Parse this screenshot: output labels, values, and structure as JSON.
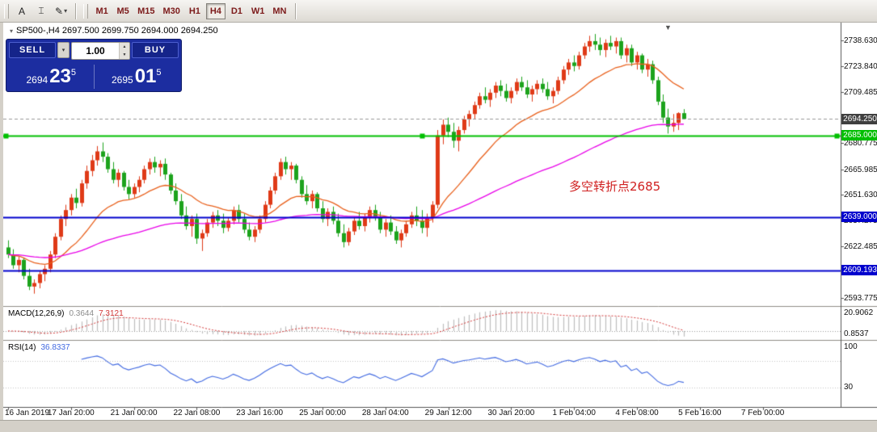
{
  "toolbar": {
    "text_tool_label": "A",
    "timeframes": [
      "M1",
      "M5",
      "M15",
      "M30",
      "H1",
      "H4",
      "D1",
      "W1",
      "MN"
    ],
    "active_timeframe": "H4"
  },
  "icons": {
    "cursor_tool": "⌶",
    "draw_tool": "✎",
    "dropdown_caret": "▾",
    "spin_up": "▲",
    "spin_down": "▼",
    "collapse_triangle": "▾",
    "shift_marker": "▼"
  },
  "symbol_info": "SP500-,H4  2697.500 2699.750 2694.000 2694.250",
  "trade_panel": {
    "sell_label": "SELL",
    "buy_label": "BUY",
    "volume": "1.00",
    "bid": {
      "small": "2694",
      "big": "23",
      "sup": "5"
    },
    "ask": {
      "small": "2695",
      "big": "01",
      "sup": "5"
    }
  },
  "annotation": {
    "text": "多空转折点2685"
  },
  "indicator_labels": {
    "macd_name": "MACD(12,26,9)",
    "macd_main": "0.3644",
    "macd_signal": "7.3121",
    "rsi_name": "RSI(14)",
    "rsi_value": "36.8337"
  },
  "chart_data": {
    "type": "candlestick",
    "title": "SP500-,H4",
    "symbol": "SP500-",
    "timeframe": "H4",
    "y_range": [
      2589.5,
      2747.5
    ],
    "y_ticks": [
      2738.63,
      2723.84,
      2709.485,
      2680.775,
      2665.985,
      2651.63,
      2637.275,
      2622.485,
      2593.775
    ],
    "current_price": 2694.25,
    "current_price_label": "2694.250",
    "hlines": [
      {
        "price": 2685.0,
        "label": "2685.000",
        "color": "#00bf00",
        "anchors": true
      },
      {
        "price": 2639.0,
        "label": "2639.000",
        "color": "#0000cd",
        "anchors": false
      },
      {
        "price": 2609.193,
        "label": "2609.193",
        "color": "#0000cd",
        "anchors": false
      }
    ],
    "time_labels": [
      "16 Jan 2019",
      "17 Jan 20:00",
      "21 Jan 00:00",
      "22 Jan 08:00",
      "23 Jan 16:00",
      "25 Jan 00:00",
      "28 Jan 04:00",
      "29 Jan 12:00",
      "30 Jan 20:00",
      "1 Feb 04:00",
      "4 Feb 08:00",
      "5 Feb 16:00",
      "7 Feb 00:00"
    ],
    "colors": {
      "up": "#df3a17",
      "down": "#1ca31c",
      "ma_fast": "#e8601c",
      "ma_slow": "#e800e8",
      "macd_hist": "#bdbdbd",
      "macd_signal": "#d23535",
      "rsi": "#4169e1",
      "level_line": "#c0c0c0",
      "current_line": "#9a9a9a",
      "price_box_bg": "#3f3f3f"
    },
    "indicators": {
      "macd": {
        "scale_top": "20.9062",
        "scale_bottom": "0.8537"
      },
      "rsi": {
        "scale_top": "100",
        "level_30": "30",
        "levels": [
          30,
          70
        ]
      }
    },
    "ohlc": [
      [
        2622,
        2626,
        2616,
        2618
      ],
      [
        2618,
        2621,
        2610,
        2612
      ],
      [
        2612,
        2617,
        2608,
        2615
      ],
      [
        2615,
        2616,
        2604,
        2606
      ],
      [
        2606,
        2610,
        2598,
        2600
      ],
      [
        2600,
        2604,
        2596,
        2602
      ],
      [
        2602,
        2609,
        2599,
        2607
      ],
      [
        2607,
        2612,
        2603,
        2610
      ],
      [
        2610,
        2620,
        2608,
        2618
      ],
      [
        2618,
        2630,
        2616,
        2628
      ],
      [
        2628,
        2640,
        2626,
        2638
      ],
      [
        2638,
        2646,
        2634,
        2643
      ],
      [
        2643,
        2652,
        2640,
        2650
      ],
      [
        2650,
        2655,
        2644,
        2647
      ],
      [
        2647,
        2660,
        2645,
        2658
      ],
      [
        2658,
        2668,
        2655,
        2665
      ],
      [
        2665,
        2674,
        2662,
        2671
      ],
      [
        2671,
        2679,
        2668,
        2676
      ],
      [
        2676,
        2681,
        2670,
        2673
      ],
      [
        2673,
        2675,
        2664,
        2666
      ],
      [
        2666,
        2670,
        2658,
        2660
      ],
      [
        2660,
        2666,
        2656,
        2664
      ],
      [
        2664,
        2665,
        2654,
        2656
      ],
      [
        2656,
        2660,
        2649,
        2652
      ],
      [
        2652,
        2658,
        2650,
        2656
      ],
      [
        2656,
        2662,
        2653,
        2660
      ],
      [
        2660,
        2668,
        2658,
        2666
      ],
      [
        2666,
        2672,
        2663,
        2670
      ],
      [
        2670,
        2673,
        2664,
        2667
      ],
      [
        2667,
        2671,
        2662,
        2669
      ],
      [
        2669,
        2672,
        2660,
        2663
      ],
      [
        2663,
        2664,
        2652,
        2654
      ],
      [
        2654,
        2658,
        2646,
        2648
      ],
      [
        2648,
        2652,
        2638,
        2640
      ],
      [
        2640,
        2645,
        2632,
        2634
      ],
      [
        2634,
        2640,
        2628,
        2638
      ],
      [
        2638,
        2641,
        2624,
        2627
      ],
      [
        2627,
        2632,
        2620,
        2630
      ],
      [
        2630,
        2638,
        2628,
        2636
      ],
      [
        2636,
        2642,
        2633,
        2640
      ],
      [
        2640,
        2643,
        2634,
        2637
      ],
      [
        2637,
        2641,
        2630,
        2633
      ],
      [
        2633,
        2639,
        2631,
        2637
      ],
      [
        2637,
        2645,
        2635,
        2643
      ],
      [
        2643,
        2646,
        2636,
        2638
      ],
      [
        2638,
        2641,
        2630,
        2632
      ],
      [
        2632,
        2636,
        2626,
        2628
      ],
      [
        2628,
        2634,
        2625,
        2632
      ],
      [
        2632,
        2640,
        2630,
        2638
      ],
      [
        2638,
        2648,
        2636,
        2646
      ],
      [
        2646,
        2656,
        2644,
        2654
      ],
      [
        2654,
        2664,
        2652,
        2662
      ],
      [
        2662,
        2672,
        2660,
        2670
      ],
      [
        2670,
        2673,
        2663,
        2666
      ],
      [
        2666,
        2670,
        2660,
        2668
      ],
      [
        2668,
        2669,
        2658,
        2660
      ],
      [
        2660,
        2662,
        2650,
        2652
      ],
      [
        2652,
        2657,
        2646,
        2648
      ],
      [
        2648,
        2654,
        2644,
        2652
      ],
      [
        2652,
        2653,
        2642,
        2644
      ],
      [
        2644,
        2648,
        2636,
        2638
      ],
      [
        2638,
        2644,
        2634,
        2642
      ],
      [
        2642,
        2645,
        2635,
        2637
      ],
      [
        2637,
        2641,
        2628,
        2630
      ],
      [
        2630,
        2635,
        2622,
        2625
      ],
      [
        2625,
        2633,
        2623,
        2631
      ],
      [
        2631,
        2639,
        2629,
        2637
      ],
      [
        2637,
        2642,
        2632,
        2634
      ],
      [
        2634,
        2641,
        2631,
        2639
      ],
      [
        2639,
        2645,
        2636,
        2643
      ],
      [
        2643,
        2646,
        2637,
        2639
      ],
      [
        2639,
        2642,
        2630,
        2632
      ],
      [
        2632,
        2638,
        2628,
        2636
      ],
      [
        2636,
        2640,
        2629,
        2631
      ],
      [
        2631,
        2634,
        2624,
        2626
      ],
      [
        2626,
        2632,
        2622,
        2630
      ],
      [
        2630,
        2637,
        2628,
        2635
      ],
      [
        2635,
        2642,
        2633,
        2640
      ],
      [
        2640,
        2645,
        2634,
        2637
      ],
      [
        2637,
        2643,
        2630,
        2633
      ],
      [
        2633,
        2641,
        2628,
        2639
      ],
      [
        2639,
        2648,
        2636,
        2646
      ],
      [
        2646,
        2688,
        2644,
        2685
      ],
      [
        2685,
        2694,
        2680,
        2691
      ],
      [
        2691,
        2695,
        2684,
        2687
      ],
      [
        2687,
        2692,
        2678,
        2682
      ],
      [
        2682,
        2690,
        2676,
        2688
      ],
      [
        2688,
        2696,
        2686,
        2694
      ],
      [
        2694,
        2699,
        2690,
        2697
      ],
      [
        2697,
        2704,
        2694,
        2702
      ],
      [
        2702,
        2709,
        2700,
        2707
      ],
      [
        2707,
        2712,
        2703,
        2705
      ],
      [
        2705,
        2711,
        2701,
        2709
      ],
      [
        2709,
        2715,
        2706,
        2713
      ],
      [
        2713,
        2716,
        2707,
        2710
      ],
      [
        2710,
        2714,
        2704,
        2706
      ],
      [
        2706,
        2712,
        2703,
        2710
      ],
      [
        2710,
        2717,
        2708,
        2715
      ],
      [
        2715,
        2718,
        2710,
        2712
      ],
      [
        2712,
        2716,
        2706,
        2708
      ],
      [
        2708,
        2713,
        2704,
        2711
      ],
      [
        2711,
        2716,
        2708,
        2714
      ],
      [
        2714,
        2717,
        2709,
        2711
      ],
      [
        2711,
        2715,
        2705,
        2707
      ],
      [
        2707,
        2712,
        2703,
        2710
      ],
      [
        2710,
        2718,
        2708,
        2716
      ],
      [
        2716,
        2724,
        2714,
        2722
      ],
      [
        2722,
        2728,
        2719,
        2726
      ],
      [
        2726,
        2730,
        2721,
        2724
      ],
      [
        2724,
        2732,
        2722,
        2730
      ],
      [
        2730,
        2737,
        2728,
        2735
      ],
      [
        2735,
        2741,
        2732,
        2738
      ],
      [
        2738,
        2742,
        2733,
        2736
      ],
      [
        2736,
        2740,
        2730,
        2733
      ],
      [
        2733,
        2739,
        2729,
        2737
      ],
      [
        2737,
        2741,
        2733,
        2735
      ],
      [
        2735,
        2740,
        2731,
        2738
      ],
      [
        2738,
        2740,
        2728,
        2730
      ],
      [
        2730,
        2736,
        2726,
        2734
      ],
      [
        2734,
        2736,
        2724,
        2726
      ],
      [
        2726,
        2732,
        2722,
        2730
      ],
      [
        2730,
        2731,
        2720,
        2722
      ],
      [
        2722,
        2728,
        2718,
        2725
      ],
      [
        2725,
        2727,
        2714,
        2716
      ],
      [
        2716,
        2718,
        2702,
        2704
      ],
      [
        2704,
        2708,
        2692,
        2695
      ],
      [
        2695,
        2700,
        2686,
        2690
      ],
      [
        2690,
        2697,
        2687,
        2692
      ],
      [
        2692,
        2698,
        2688,
        2697.5
      ],
      [
        2697.5,
        2699.75,
        2694,
        2694.25
      ]
    ]
  }
}
